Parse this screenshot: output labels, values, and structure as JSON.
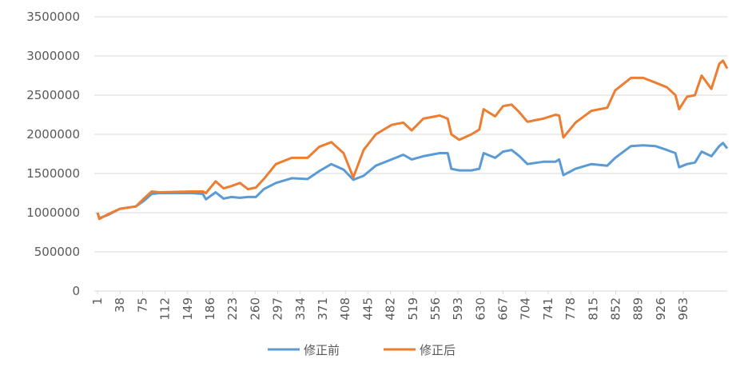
{
  "chart_data": {
    "type": "line",
    "x": [
      1,
      4,
      18,
      38,
      64,
      77,
      90,
      103,
      156,
      174,
      179,
      195,
      208,
      221,
      235,
      248,
      261,
      274,
      294,
      320,
      346,
      365,
      385,
      405,
      421,
      438,
      458,
      484,
      503,
      517,
      536,
      563,
      576,
      582,
      595,
      615,
      628,
      635,
      654,
      667,
      681,
      694,
      707,
      733,
      753,
      759,
      766,
      786,
      812,
      838,
      851,
      877,
      897,
      917,
      936,
      950,
      956,
      969,
      982,
      993,
      1009,
      1022,
      1028,
      1035
    ],
    "series": [
      {
        "name": "修正前",
        "color": "#5b9bd5",
        "values": [
          1000000,
          930000,
          970000,
          1050000,
          1080000,
          1150000,
          1240000,
          1250000,
          1250000,
          1240000,
          1170000,
          1260000,
          1180000,
          1200000,
          1190000,
          1200000,
          1200000,
          1300000,
          1380000,
          1440000,
          1430000,
          1530000,
          1620000,
          1550000,
          1420000,
          1470000,
          1600000,
          1680000,
          1740000,
          1680000,
          1720000,
          1760000,
          1760000,
          1560000,
          1540000,
          1540000,
          1560000,
          1760000,
          1700000,
          1780000,
          1800000,
          1720000,
          1620000,
          1650000,
          1650000,
          1680000,
          1480000,
          1560000,
          1620000,
          1600000,
          1700000,
          1850000,
          1860000,
          1850000,
          1800000,
          1760000,
          1580000,
          1620000,
          1640000,
          1780000,
          1720000,
          1850000,
          1890000,
          1820000
        ]
      },
      {
        "name": "修正后",
        "color": "#ed7d31",
        "values": [
          1000000,
          920000,
          980000,
          1050000,
          1080000,
          1180000,
          1270000,
          1260000,
          1270000,
          1270000,
          1250000,
          1400000,
          1310000,
          1340000,
          1380000,
          1300000,
          1320000,
          1430000,
          1620000,
          1700000,
          1700000,
          1840000,
          1900000,
          1760000,
          1450000,
          1800000,
          2000000,
          2120000,
          2150000,
          2050000,
          2200000,
          2240000,
          2200000,
          2000000,
          1930000,
          2000000,
          2060000,
          2320000,
          2230000,
          2360000,
          2380000,
          2280000,
          2160000,
          2200000,
          2250000,
          2240000,
          1960000,
          2150000,
          2300000,
          2340000,
          2560000,
          2720000,
          2720000,
          2660000,
          2600000,
          2500000,
          2320000,
          2480000,
          2500000,
          2750000,
          2580000,
          2900000,
          2940000,
          2840000
        ]
      }
    ],
    "xlim": [
      1,
      1035
    ],
    "xticks": [
      1,
      38,
      75,
      112,
      149,
      186,
      223,
      260,
      297,
      334,
      371,
      408,
      445,
      482,
      519,
      556,
      593,
      630,
      667,
      704,
      741,
      778,
      815,
      852,
      889,
      926,
      963
    ],
    "ylim": [
      0,
      3500000
    ],
    "yticks": [
      0,
      500000,
      1000000,
      1500000,
      2000000,
      2500000,
      3000000,
      3500000
    ],
    "grid": true,
    "legend": "bottom"
  }
}
